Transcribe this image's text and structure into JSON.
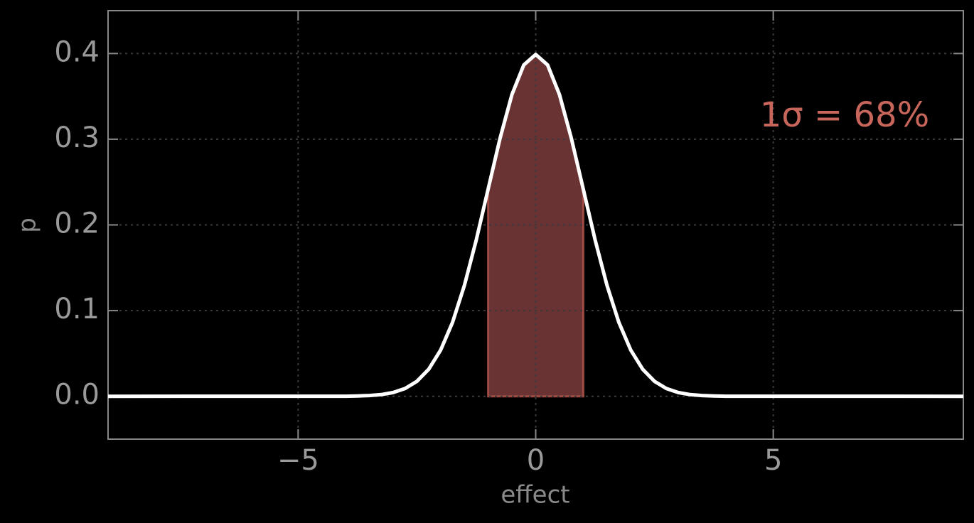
{
  "chart_data": {
    "type": "line",
    "xlabel": "effect",
    "ylabel": "p",
    "annotation": "1σ = 68%",
    "annotation_color": "#c9665c",
    "x": [
      -9,
      -4,
      -3.75,
      -3.5,
      -3.25,
      -3,
      -2.75,
      -2.5,
      -2.25,
      -2,
      -1.75,
      -1.5,
      -1.25,
      -1,
      -0.75,
      -0.5,
      -0.25,
      0,
      0.25,
      0.5,
      0.75,
      1,
      1.25,
      1.5,
      1.75,
      2,
      2.25,
      2.5,
      2.75,
      3,
      3.25,
      3.5,
      3.75,
      4,
      9
    ],
    "values": [
      0,
      0.0001,
      0.0004,
      0.0009,
      0.002,
      0.0044,
      0.0091,
      0.0175,
      0.0317,
      0.054,
      0.0863,
      0.1295,
      0.1826,
      0.242,
      0.3011,
      0.3521,
      0.3867,
      0.3989,
      0.3867,
      0.3521,
      0.3011,
      0.242,
      0.1826,
      0.1295,
      0.0863,
      0.054,
      0.0317,
      0.0175,
      0.0091,
      0.0044,
      0.002,
      0.0009,
      0.0004,
      0.0001,
      0
    ],
    "color": "#ffffff",
    "fill": {
      "x": [
        -1,
        -0.75,
        -0.5,
        -0.25,
        0,
        0.25,
        0.5,
        0.75,
        1
      ],
      "values": [
        0.242,
        0.3011,
        0.3521,
        0.3867,
        0.3989,
        0.3867,
        0.3521,
        0.3011,
        0.242
      ],
      "color": "#6a3333"
    },
    "xlim": [
      -9,
      9
    ],
    "ylim": [
      -0.05,
      0.45
    ],
    "xticks": [
      {
        "value": -5,
        "label": "−5"
      },
      0,
      5
    ],
    "yticks": [
      {
        "value": 0,
        "label": "0.0"
      },
      0.1,
      0.2,
      0.3,
      0.4
    ],
    "grid": true
  }
}
